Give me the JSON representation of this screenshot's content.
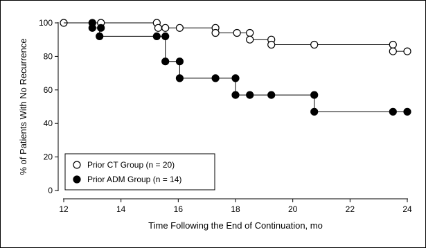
{
  "chart_data": {
    "type": "line",
    "title": "",
    "xlabel": "Time Following the End of Continuation, mo",
    "ylabel": "% of Patients With No Recurrence",
    "xlim": [
      12,
      24
    ],
    "ylim": [
      0,
      100
    ],
    "xticks": [
      "12",
      "14",
      "16",
      "18",
      "20",
      "22",
      "24"
    ],
    "yticks": [
      "0",
      "20",
      "40",
      "60",
      "80",
      "100"
    ],
    "grid": false,
    "legend_position": "bottom-left",
    "series": [
      {
        "name": "Prior CT Group (n = 20)",
        "marker": "open-circle",
        "color": "#000000",
        "steps": [
          [
            12,
            100
          ],
          [
            15.3,
            100
          ],
          [
            15.3,
            97
          ],
          [
            17.3,
            97
          ],
          [
            17.3,
            94
          ],
          [
            18.5,
            94
          ],
          [
            18.5,
            90
          ],
          [
            19.25,
            90
          ],
          [
            19.25,
            87
          ],
          [
            23.5,
            87
          ],
          [
            23.5,
            83
          ],
          [
            24,
            83
          ]
        ],
        "points": [
          [
            12,
            100
          ],
          [
            13.3,
            100
          ],
          [
            15.25,
            100
          ],
          [
            15.3,
            97
          ],
          [
            15.55,
            97
          ],
          [
            16.05,
            97
          ],
          [
            17.3,
            97
          ],
          [
            17.3,
            94
          ],
          [
            18.05,
            94
          ],
          [
            18.5,
            94
          ],
          [
            18.5,
            90
          ],
          [
            19.25,
            90
          ],
          [
            19.25,
            87
          ],
          [
            20.75,
            87
          ],
          [
            23.5,
            87
          ],
          [
            23.5,
            83
          ],
          [
            24,
            83
          ]
        ]
      },
      {
        "name": "Prior ADM Group (n = 14)",
        "marker": "filled-circle",
        "color": "#000000",
        "steps": [
          [
            12,
            100
          ],
          [
            13,
            100
          ],
          [
            13,
            97
          ],
          [
            13.25,
            97
          ],
          [
            13.25,
            92
          ],
          [
            15.55,
            92
          ],
          [
            15.55,
            77
          ],
          [
            16.05,
            77
          ],
          [
            16.05,
            67
          ],
          [
            18,
            67
          ],
          [
            18,
            57
          ],
          [
            20.75,
            57
          ],
          [
            20.75,
            47
          ],
          [
            24,
            47
          ]
        ],
        "points": [
          [
            13,
            100
          ],
          [
            13,
            97
          ],
          [
            13.3,
            97
          ],
          [
            13.25,
            92
          ],
          [
            15.25,
            92
          ],
          [
            15.55,
            92
          ],
          [
            15.55,
            77
          ],
          [
            16.05,
            77
          ],
          [
            16.05,
            67
          ],
          [
            17.3,
            67
          ],
          [
            18,
            67
          ],
          [
            18,
            57
          ],
          [
            18.5,
            57
          ],
          [
            19.25,
            57
          ],
          [
            20.75,
            57
          ],
          [
            20.75,
            47
          ],
          [
            23.5,
            47
          ],
          [
            24,
            47
          ]
        ]
      }
    ]
  }
}
